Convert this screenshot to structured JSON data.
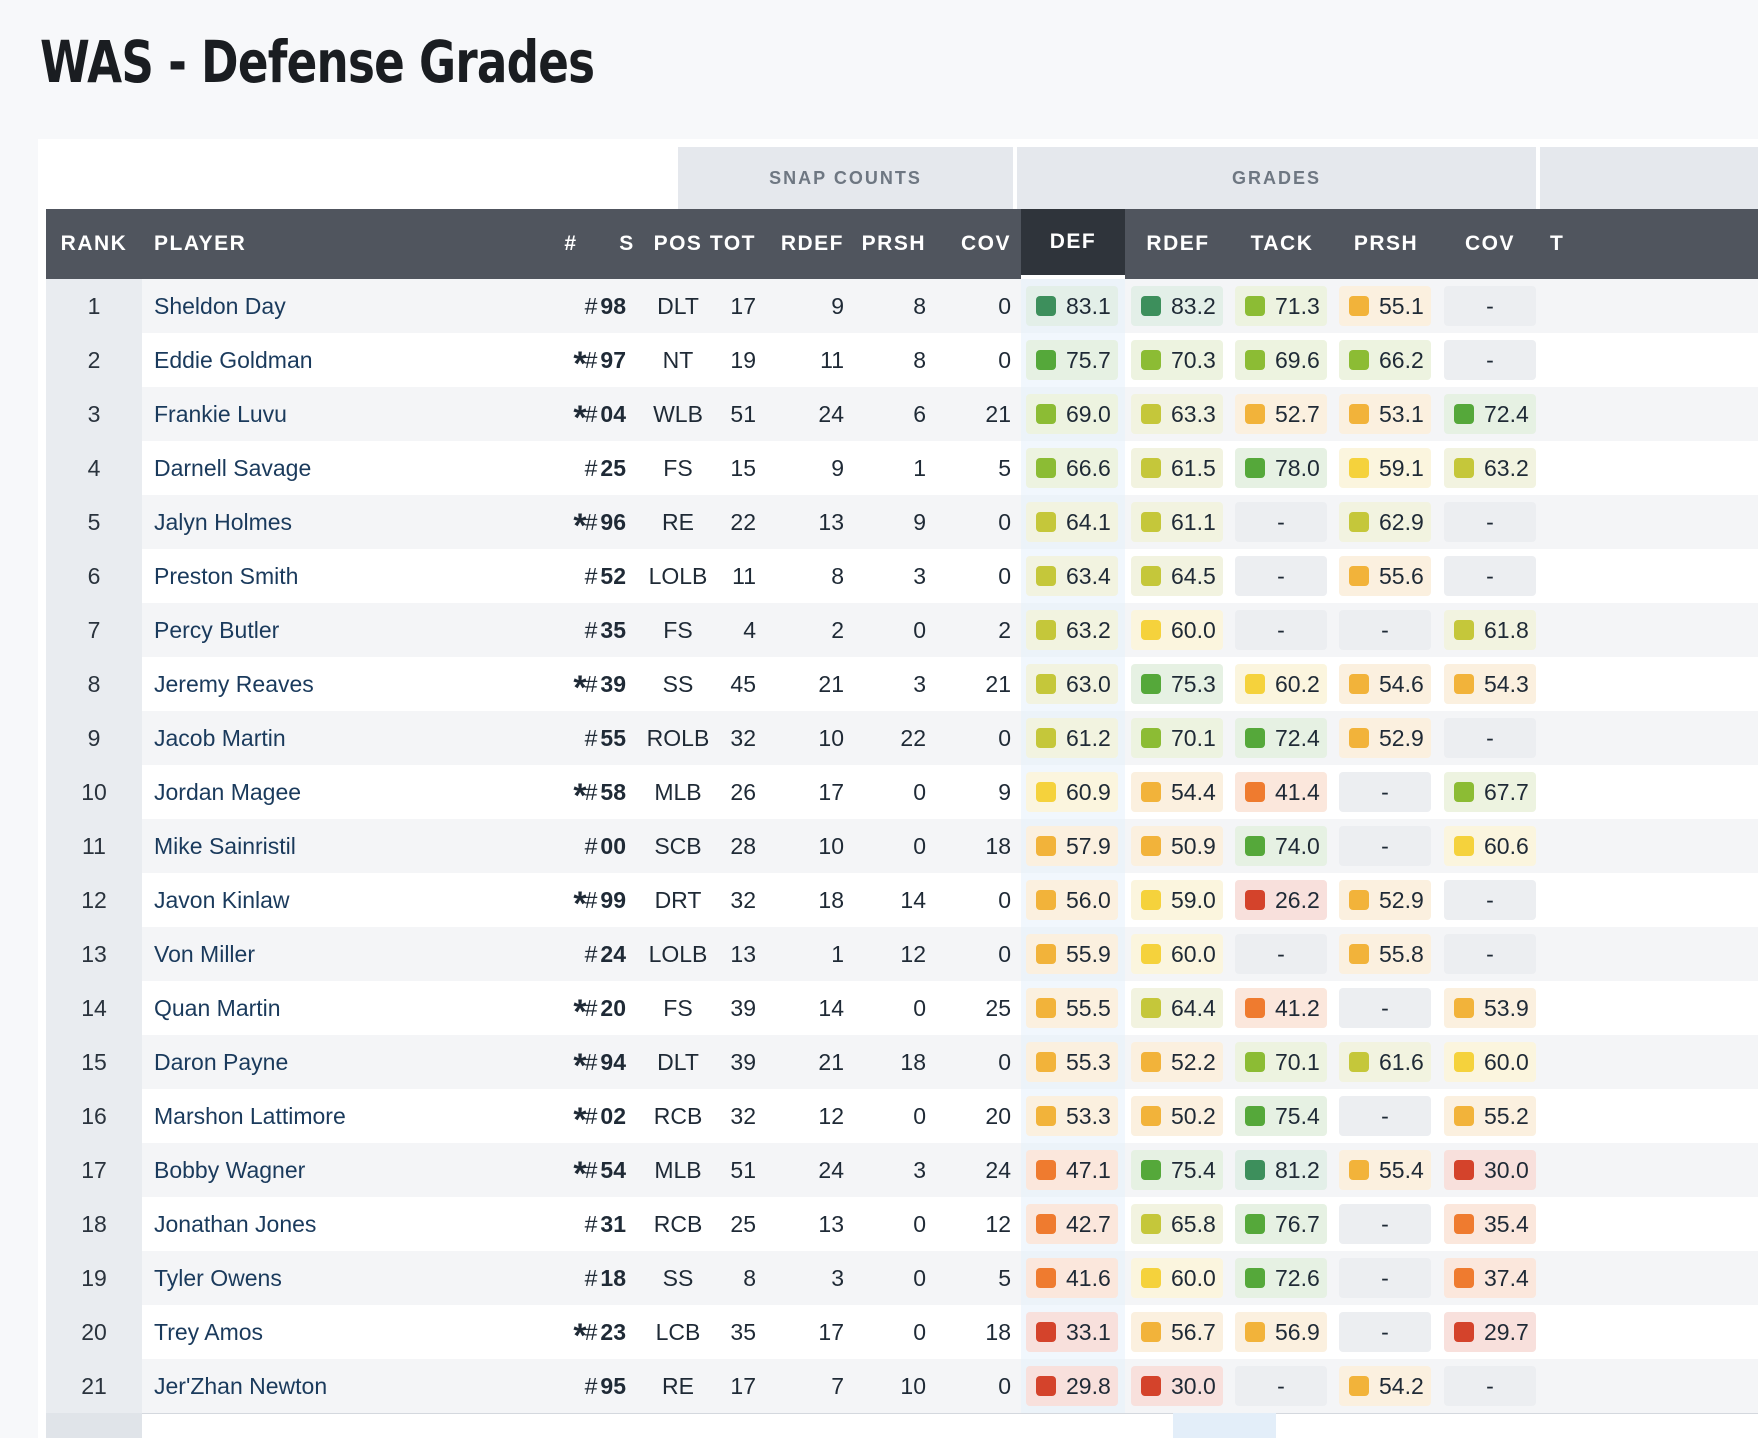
{
  "title": "WAS - Defense Grades",
  "groups": {
    "snap_counts": "SNAP COUNTS",
    "grades": "GRADES"
  },
  "columns": {
    "rank": "RANK",
    "player": "PLAYER",
    "num": "#",
    "s": "S",
    "pos": "POS",
    "tot": "TOT",
    "rdef": "RDEF",
    "prsh": "PRSH",
    "cov": "COV",
    "g_def": "DEF",
    "g_rdef": "RDEF",
    "g_tack": "TACK",
    "g_prsh": "PRSH",
    "g_cov": "COV",
    "g_extra": "T"
  },
  "grade_colors": {
    "dark_green": "#3d8f5c",
    "green": "#55a83a",
    "light_green": "#8cbc34",
    "yellow_green": "#c5c73a",
    "yellow": "#f5d23c",
    "orange_yellow": "#f2b33a",
    "orange": "#ef7b2f",
    "red": "#d4432b"
  },
  "players": [
    {
      "rank": "1",
      "name": "Sheldon Day",
      "num": "98",
      "s": "",
      "pos": "DLT",
      "tot": "17",
      "rdef": "9",
      "prsh": "8",
      "cov": "0",
      "def": "83.1",
      "g_rdef": "83.2",
      "tack": "71.3",
      "g_prsh": "55.1",
      "g_cov": "-"
    },
    {
      "rank": "2",
      "name": "Eddie Goldman",
      "num": "97",
      "s": "*",
      "pos": "NT",
      "tot": "19",
      "rdef": "11",
      "prsh": "8",
      "cov": "0",
      "def": "75.7",
      "g_rdef": "70.3",
      "tack": "69.6",
      "g_prsh": "66.2",
      "g_cov": "-"
    },
    {
      "rank": "3",
      "name": "Frankie Luvu",
      "num": "04",
      "s": "*",
      "pos": "WLB",
      "tot": "51",
      "rdef": "24",
      "prsh": "6",
      "cov": "21",
      "def": "69.0",
      "g_rdef": "63.3",
      "tack": "52.7",
      "g_prsh": "53.1",
      "g_cov": "72.4"
    },
    {
      "rank": "4",
      "name": "Darnell Savage",
      "num": "25",
      "s": "",
      "pos": "FS",
      "tot": "15",
      "rdef": "9",
      "prsh": "1",
      "cov": "5",
      "def": "66.6",
      "g_rdef": "61.5",
      "tack": "78.0",
      "g_prsh": "59.1",
      "g_cov": "63.2"
    },
    {
      "rank": "5",
      "name": "Jalyn Holmes",
      "num": "96",
      "s": "*",
      "pos": "RE",
      "tot": "22",
      "rdef": "13",
      "prsh": "9",
      "cov": "0",
      "def": "64.1",
      "g_rdef": "61.1",
      "tack": "-",
      "g_prsh": "62.9",
      "g_cov": "-"
    },
    {
      "rank": "6",
      "name": "Preston Smith",
      "num": "52",
      "s": "",
      "pos": "LOLB",
      "tot": "11",
      "rdef": "8",
      "prsh": "3",
      "cov": "0",
      "def": "63.4",
      "g_rdef": "64.5",
      "tack": "-",
      "g_prsh": "55.6",
      "g_cov": "-"
    },
    {
      "rank": "7",
      "name": "Percy Butler",
      "num": "35",
      "s": "",
      "pos": "FS",
      "tot": "4",
      "rdef": "2",
      "prsh": "0",
      "cov": "2",
      "def": "63.2",
      "g_rdef": "60.0",
      "tack": "-",
      "g_prsh": "-",
      "g_cov": "61.8"
    },
    {
      "rank": "8",
      "name": "Jeremy Reaves",
      "num": "39",
      "s": "*",
      "pos": "SS",
      "tot": "45",
      "rdef": "21",
      "prsh": "3",
      "cov": "21",
      "def": "63.0",
      "g_rdef": "75.3",
      "tack": "60.2",
      "g_prsh": "54.6",
      "g_cov": "54.3"
    },
    {
      "rank": "9",
      "name": "Jacob Martin",
      "num": "55",
      "s": "",
      "pos": "ROLB",
      "tot": "32",
      "rdef": "10",
      "prsh": "22",
      "cov": "0",
      "def": "61.2",
      "g_rdef": "70.1",
      "tack": "72.4",
      "g_prsh": "52.9",
      "g_cov": "-"
    },
    {
      "rank": "10",
      "name": "Jordan Magee",
      "num": "58",
      "s": "*",
      "pos": "MLB",
      "tot": "26",
      "rdef": "17",
      "prsh": "0",
      "cov": "9",
      "def": "60.9",
      "g_rdef": "54.4",
      "tack": "41.4",
      "g_prsh": "-",
      "g_cov": "67.7"
    },
    {
      "rank": "11",
      "name": "Mike Sainristil",
      "num": "00",
      "s": "",
      "pos": "SCB",
      "tot": "28",
      "rdef": "10",
      "prsh": "0",
      "cov": "18",
      "def": "57.9",
      "g_rdef": "50.9",
      "tack": "74.0",
      "g_prsh": "-",
      "g_cov": "60.6"
    },
    {
      "rank": "12",
      "name": "Javon Kinlaw",
      "num": "99",
      "s": "*",
      "pos": "DRT",
      "tot": "32",
      "rdef": "18",
      "prsh": "14",
      "cov": "0",
      "def": "56.0",
      "g_rdef": "59.0",
      "tack": "26.2",
      "g_prsh": "52.9",
      "g_cov": "-"
    },
    {
      "rank": "13",
      "name": "Von Miller",
      "num": "24",
      "s": "",
      "pos": "LOLB",
      "tot": "13",
      "rdef": "1",
      "prsh": "12",
      "cov": "0",
      "def": "55.9",
      "g_rdef": "60.0",
      "tack": "-",
      "g_prsh": "55.8",
      "g_cov": "-"
    },
    {
      "rank": "14",
      "name": "Quan Martin",
      "num": "20",
      "s": "*",
      "pos": "FS",
      "tot": "39",
      "rdef": "14",
      "prsh": "0",
      "cov": "25",
      "def": "55.5",
      "g_rdef": "64.4",
      "tack": "41.2",
      "g_prsh": "-",
      "g_cov": "53.9"
    },
    {
      "rank": "15",
      "name": "Daron Payne",
      "num": "94",
      "s": "*",
      "pos": "DLT",
      "tot": "39",
      "rdef": "21",
      "prsh": "18",
      "cov": "0",
      "def": "55.3",
      "g_rdef": "52.2",
      "tack": "70.1",
      "g_prsh": "61.6",
      "g_cov": "60.0"
    },
    {
      "rank": "16",
      "name": "Marshon Lattimore",
      "num": "02",
      "s": "*",
      "pos": "RCB",
      "tot": "32",
      "rdef": "12",
      "prsh": "0",
      "cov": "20",
      "def": "53.3",
      "g_rdef": "50.2",
      "tack": "75.4",
      "g_prsh": "-",
      "g_cov": "55.2"
    },
    {
      "rank": "17",
      "name": "Bobby Wagner",
      "num": "54",
      "s": "*",
      "pos": "MLB",
      "tot": "51",
      "rdef": "24",
      "prsh": "3",
      "cov": "24",
      "def": "47.1",
      "g_rdef": "75.4",
      "tack": "81.2",
      "g_prsh": "55.4",
      "g_cov": "30.0"
    },
    {
      "rank": "18",
      "name": "Jonathan Jones",
      "num": "31",
      "s": "",
      "pos": "RCB",
      "tot": "25",
      "rdef": "13",
      "prsh": "0",
      "cov": "12",
      "def": "42.7",
      "g_rdef": "65.8",
      "tack": "76.7",
      "g_prsh": "-",
      "g_cov": "35.4"
    },
    {
      "rank": "19",
      "name": "Tyler Owens",
      "num": "18",
      "s": "",
      "pos": "SS",
      "tot": "8",
      "rdef": "3",
      "prsh": "0",
      "cov": "5",
      "def": "41.6",
      "g_rdef": "60.0",
      "tack": "72.6",
      "g_prsh": "-",
      "g_cov": "37.4"
    },
    {
      "rank": "20",
      "name": "Trey Amos",
      "num": "23",
      "s": "*",
      "pos": "LCB",
      "tot": "35",
      "rdef": "17",
      "prsh": "0",
      "cov": "18",
      "def": "33.1",
      "g_rdef": "56.7",
      "tack": "56.9",
      "g_prsh": "-",
      "g_cov": "29.7"
    },
    {
      "rank": "21",
      "name": "Jer'Zhan Newton",
      "num": "95",
      "s": "",
      "pos": "RE",
      "tot": "17",
      "rdef": "7",
      "prsh": "10",
      "cov": "0",
      "def": "29.8",
      "g_rdef": "30.0",
      "tack": "-",
      "g_prsh": "54.2",
      "g_cov": "-"
    }
  ]
}
